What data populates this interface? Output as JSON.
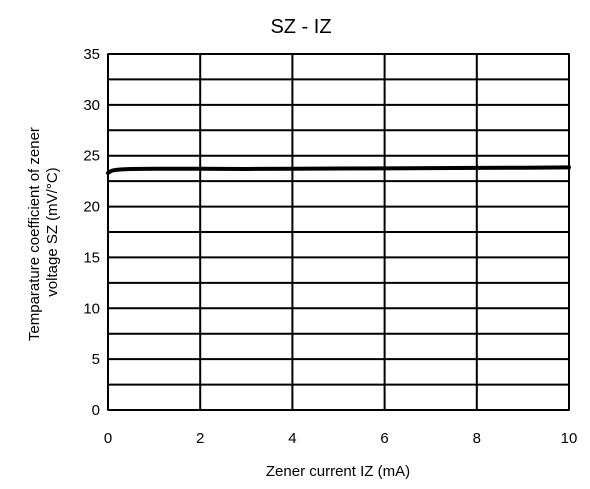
{
  "chart_data": {
    "type": "line",
    "title": "SZ - IZ",
    "xlabel": "Zener current IZ (mA)",
    "ylabel_lines": [
      "Temparature coefficient of zener",
      "voltage SZ (mV/°C)"
    ],
    "xlim": [
      0,
      10
    ],
    "ylim": [
      0,
      35
    ],
    "x_ticks": [
      0,
      2,
      4,
      6,
      8,
      10
    ],
    "y_ticks": [
      0,
      5,
      10,
      15,
      20,
      25,
      30,
      35
    ],
    "grid_x": [
      0,
      2,
      4,
      6,
      8,
      10
    ],
    "grid_y": [
      0,
      2.5,
      5,
      7.5,
      10,
      12.5,
      15,
      17.5,
      20,
      22.5,
      25,
      27.5,
      30,
      32.5,
      35
    ],
    "grid": true,
    "series": [
      {
        "x": [
          0.0,
          0.05,
          0.1,
          0.2,
          0.3,
          0.5,
          1,
          2,
          3,
          4,
          5,
          6,
          7,
          8,
          9,
          10
        ],
        "y": [
          23.3,
          23.45,
          23.55,
          23.62,
          23.66,
          23.7,
          23.72,
          23.72,
          23.7,
          23.72,
          23.74,
          23.76,
          23.78,
          23.8,
          23.82,
          23.85
        ]
      }
    ]
  }
}
